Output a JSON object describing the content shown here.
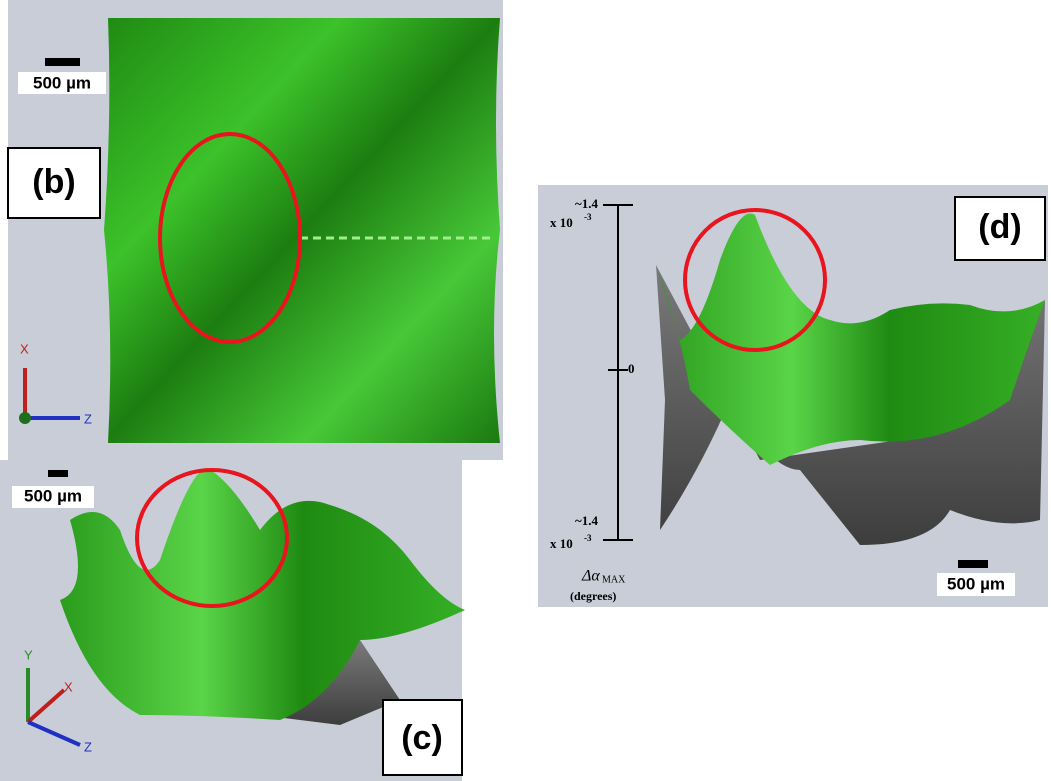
{
  "panels": {
    "b": {
      "label": "(b)",
      "scale_bar": "500 µm",
      "axes": [
        "X",
        "Z"
      ]
    },
    "c": {
      "label": "(c)",
      "scale_bar": "500 µm",
      "axes": [
        "Y",
        "X",
        "Z"
      ]
    },
    "d": {
      "label": "(d)",
      "scale_bar": "500 µm",
      "scale": {
        "top": "~1.4",
        "top_factor": "x 10",
        "top_exponent": "-3",
        "middle": "0",
        "bottom": "~1.4",
        "bottom_factor": "x 10",
        "bottom_exponent": "-3",
        "quantity": "Δα",
        "quantity_subscript": "MAX",
        "unit": "(degrees)"
      }
    }
  }
}
